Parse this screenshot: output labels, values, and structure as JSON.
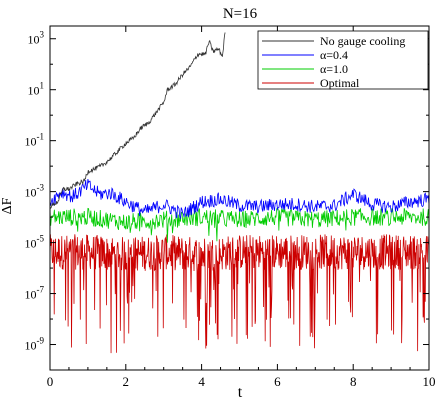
{
  "chart_data": {
    "type": "line",
    "title": "N=16",
    "xlabel": "t",
    "ylabel": "ΔF",
    "xlim": [
      0,
      10
    ],
    "ylim_log10": [
      -10,
      3.5
    ],
    "y_scale": "log",
    "x_ticks": [
      0,
      2,
      4,
      6,
      8,
      10
    ],
    "x_tick_labels": [
      "0",
      "2",
      "4",
      "6",
      "8",
      "10"
    ],
    "y_ticks_log10": [
      3,
      1,
      -1,
      -3,
      -5,
      -7,
      -9
    ],
    "y_tick_labels": [
      {
        "base": "10",
        "exp": "3"
      },
      {
        "base": "10",
        "exp": "1"
      },
      {
        "base": "10",
        "exp": "-1"
      },
      {
        "base": "10",
        "exp": "-3"
      },
      {
        "base": "10",
        "exp": "-5"
      },
      {
        "base": "10",
        "exp": "-7"
      },
      {
        "base": "10",
        "exp": "-9"
      }
    ],
    "grid": false,
    "legend_position": "top-right",
    "series": [
      {
        "name": "No gauge cooling",
        "color": "#333333",
        "points_log10": [
          [
            0.0,
            -3.6
          ],
          [
            0.2,
            -3.4
          ],
          [
            0.35,
            -2.9
          ],
          [
            0.5,
            -2.9
          ],
          [
            0.7,
            -2.7
          ],
          [
            0.9,
            -2.6
          ],
          [
            1.0,
            -2.2
          ],
          [
            1.2,
            -2.1
          ],
          [
            1.4,
            -1.95
          ],
          [
            1.6,
            -1.7
          ],
          [
            1.8,
            -1.4
          ],
          [
            2.0,
            -1.1
          ],
          [
            2.2,
            -0.9
          ],
          [
            2.4,
            -0.5
          ],
          [
            2.6,
            -0.3
          ],
          [
            2.8,
            0.1
          ],
          [
            3.0,
            0.5
          ],
          [
            3.1,
            1.0
          ],
          [
            3.3,
            1.2
          ],
          [
            3.5,
            1.6
          ],
          [
            3.7,
            1.9
          ],
          [
            3.9,
            2.4
          ],
          [
            4.1,
            2.4
          ],
          [
            4.2,
            2.9
          ],
          [
            4.3,
            2.5
          ],
          [
            4.45,
            2.6
          ],
          [
            4.55,
            2.3
          ],
          [
            4.62,
            3.3
          ]
        ]
      },
      {
        "name": "α=0.4",
        "color": "#0000ff",
        "base_log10": -3.4,
        "points_log10": [
          [
            0.0,
            -3.4
          ],
          [
            0.3,
            -3.0
          ],
          [
            0.6,
            -3.2
          ],
          [
            1.0,
            -2.75
          ],
          [
            1.3,
            -3.1
          ],
          [
            1.6,
            -3.05
          ],
          [
            2.0,
            -3.4
          ],
          [
            2.5,
            -3.8
          ],
          [
            3.0,
            -3.5
          ],
          [
            3.5,
            -3.9
          ],
          [
            4.0,
            -3.4
          ],
          [
            4.5,
            -3.3
          ],
          [
            5.0,
            -3.55
          ],
          [
            5.5,
            -3.6
          ],
          [
            6.0,
            -3.5
          ],
          [
            6.5,
            -3.5
          ],
          [
            7.0,
            -3.6
          ],
          [
            7.5,
            -3.55
          ],
          [
            8.0,
            -3.1
          ],
          [
            8.5,
            -3.5
          ],
          [
            9.0,
            -3.6
          ],
          [
            9.5,
            -3.4
          ],
          [
            10.0,
            -3.3
          ]
        ]
      },
      {
        "name": "α=1.0",
        "color": "#00cc00",
        "base_log10": -4.0,
        "points_log10": [
          [
            0.0,
            -4.0
          ],
          [
            1.0,
            -4.0
          ],
          [
            2.0,
            -4.2
          ],
          [
            3.0,
            -4.1
          ],
          [
            4.0,
            -4.0
          ],
          [
            5.0,
            -4.1
          ],
          [
            6.0,
            -4.0
          ],
          [
            7.0,
            -4.1
          ],
          [
            8.0,
            -4.0
          ],
          [
            9.0,
            -4.0
          ],
          [
            10.0,
            -4.0
          ]
        ]
      },
      {
        "name": "Optimal",
        "color": "#cc0000",
        "base_log10": -5.3,
        "points_log10": [
          [
            0.0,
            -5.3
          ],
          [
            1.0,
            -5.3
          ],
          [
            2.0,
            -5.4
          ],
          [
            3.0,
            -5.3
          ],
          [
            4.0,
            -5.4
          ],
          [
            5.0,
            -5.3
          ],
          [
            6.0,
            -5.3
          ],
          [
            7.0,
            -5.3
          ],
          [
            8.0,
            -5.3
          ],
          [
            9.0,
            -5.3
          ],
          [
            10.0,
            -5.3
          ]
        ]
      }
    ]
  }
}
